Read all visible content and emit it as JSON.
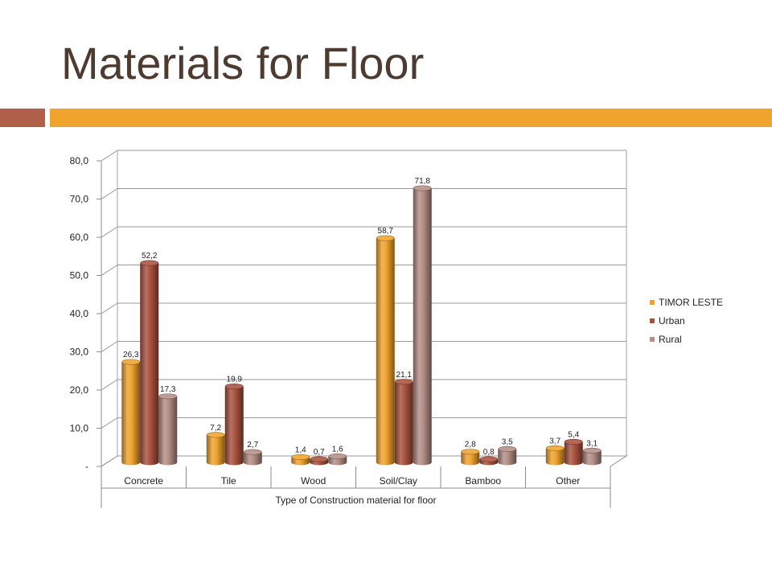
{
  "slide": {
    "title": "Materials for Floor"
  },
  "colors": {
    "title": "#4e3b30",
    "accent_left": "#b0604a",
    "accent_right": "#f0a32e"
  },
  "chart_data": {
    "type": "bar",
    "title": "",
    "xlabel": "Type of Construction material for floor",
    "ylabel": "",
    "categories": [
      "Concrete",
      "Tile",
      "Wood",
      "Soil/Clay",
      "Bamboo",
      "Other"
    ],
    "series": [
      {
        "name": "TIMOR LESTE",
        "values": [
          26.3,
          7.2,
          1.4,
          58.7,
          2.8,
          3.7
        ],
        "labels": [
          "26,3",
          "7,2",
          "1,4",
          "58,7",
          "2,8",
          "3,7"
        ],
        "color": "#f0a32e"
      },
      {
        "name": "Urban",
        "values": [
          52.2,
          19.9,
          0.7,
          21.1,
          0.8,
          5.4
        ],
        "labels": [
          "52,2",
          "19,9",
          "0,7",
          "21,1",
          "0,8",
          "5,4"
        ],
        "color": "#a9533f"
      },
      {
        "name": "Rural",
        "values": [
          17.3,
          2.7,
          1.6,
          71.8,
          3.5,
          3.1
        ],
        "labels": [
          "17,3",
          "2,7",
          "1,6",
          "71,8",
          "3,5",
          "3,1"
        ],
        "color": "#b48e86"
      }
    ],
    "ylim": [
      0,
      80
    ],
    "yticks": [
      0,
      10,
      20,
      30,
      40,
      50,
      60,
      70,
      80
    ],
    "ytick_labels": [
      "-",
      "10,0",
      "20,0",
      "30,0",
      "40,0",
      "50,0",
      "60,0",
      "70,0",
      "80,0"
    ],
    "grid": true,
    "legend": "right",
    "style": "3d-cylinder"
  }
}
